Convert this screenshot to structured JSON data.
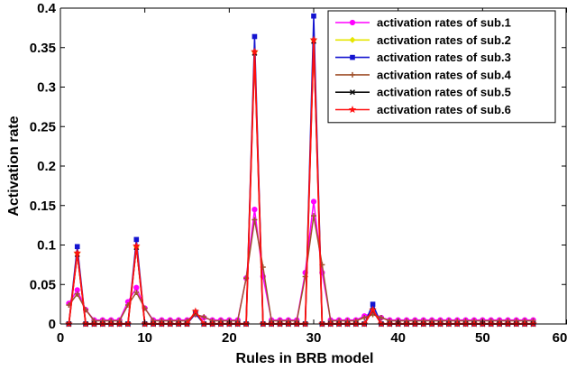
{
  "chart_data": {
    "type": "line",
    "xlabel": "Rules in BRB model",
    "ylabel": "Activation rate",
    "xlim": [
      0,
      60
    ],
    "ylim": [
      0,
      0.4
    ],
    "xticks": [
      0,
      10,
      20,
      30,
      40,
      50,
      60
    ],
    "yticks": [
      0,
      0.05,
      0.1,
      0.15,
      0.2,
      0.25,
      0.3,
      0.35,
      0.4
    ],
    "xtick_labels": [
      "0",
      "10",
      "20",
      "30",
      "40",
      "50",
      "60"
    ],
    "ytick_labels": [
      "0",
      "0.05",
      "0.1",
      "0.15",
      "0.2",
      "0.25",
      "0.3",
      "0.35",
      "0.4"
    ],
    "grid": false,
    "legend_position": "top-right",
    "x": [
      1,
      2,
      3,
      4,
      5,
      6,
      7,
      8,
      9,
      10,
      11,
      12,
      13,
      14,
      15,
      16,
      17,
      18,
      19,
      20,
      21,
      22,
      23,
      24,
      25,
      26,
      27,
      28,
      29,
      30,
      31,
      32,
      33,
      34,
      35,
      36,
      37,
      38,
      39,
      40,
      41,
      42,
      43,
      44,
      45,
      46,
      47,
      48,
      49,
      50,
      51,
      52,
      53,
      54,
      55,
      56
    ],
    "series": [
      {
        "name": "activation rates of sub.1",
        "color": "#ff00ff",
        "marker": "circle",
        "values": [
          0.026,
          0.043,
          0.018,
          0.005,
          0.005,
          0.005,
          0.005,
          0.028,
          0.046,
          0.02,
          0.005,
          0.005,
          0.005,
          0.005,
          0.005,
          0.012,
          0.008,
          0.005,
          0.005,
          0.005,
          0.005,
          0.058,
          0.145,
          0.06,
          0.005,
          0.005,
          0.005,
          0.005,
          0.065,
          0.155,
          0.065,
          0.005,
          0.005,
          0.005,
          0.005,
          0.01,
          0.014,
          0.008,
          0.005,
          0.005,
          0.005,
          0.005,
          0.005,
          0.005,
          0.005,
          0.005,
          0.005,
          0.005,
          0.005,
          0.005,
          0.005,
          0.005,
          0.005,
          0.005,
          0.005,
          0.005
        ]
      },
      {
        "name": "activation rates of sub.2",
        "color": "#e6e600",
        "marker": "diamond",
        "values": [
          0.0,
          0.09,
          0.0,
          0.0,
          0.0,
          0.0,
          0.0,
          0.0,
          0.098,
          0.0,
          0.0,
          0.0,
          0.0,
          0.0,
          0.0,
          0.015,
          0.0,
          0.0,
          0.0,
          0.0,
          0.0,
          0.0,
          0.345,
          0.0,
          0.0,
          0.0,
          0.0,
          0.0,
          0.0,
          0.36,
          0.0,
          0.0,
          0.0,
          0.0,
          0.0,
          0.0,
          0.018,
          0.0,
          0.0,
          0.0,
          0.0,
          0.0,
          0.0,
          0.0,
          0.0,
          0.0,
          0.0,
          0.0,
          0.0,
          0.0,
          0.0,
          0.0,
          0.0,
          0.0,
          0.0,
          0.0
        ]
      },
      {
        "name": "activation rates of sub.3",
        "color": "#1414d0",
        "marker": "square",
        "values": [
          0.0,
          0.098,
          0.0,
          0.0,
          0.0,
          0.0,
          0.0,
          0.0,
          0.107,
          0.0,
          0.0,
          0.0,
          0.0,
          0.0,
          0.0,
          0.013,
          0.0,
          0.0,
          0.0,
          0.0,
          0.0,
          0.0,
          0.364,
          0.0,
          0.0,
          0.0,
          0.0,
          0.0,
          0.0,
          0.39,
          0.0,
          0.0,
          0.0,
          0.0,
          0.0,
          0.0,
          0.025,
          0.0,
          0.0,
          0.0,
          0.0,
          0.0,
          0.0,
          0.0,
          0.0,
          0.0,
          0.0,
          0.0,
          0.0,
          0.0,
          0.0,
          0.0,
          0.0,
          0.0,
          0.0,
          0.0
        ]
      },
      {
        "name": "activation rates of sub.4",
        "color": "#a0522d",
        "marker": "plus",
        "values": [
          0.024,
          0.038,
          0.018,
          0.004,
          0.004,
          0.004,
          0.004,
          0.024,
          0.04,
          0.02,
          0.004,
          0.004,
          0.004,
          0.004,
          0.004,
          0.012,
          0.009,
          0.004,
          0.004,
          0.004,
          0.004,
          0.058,
          0.132,
          0.072,
          0.004,
          0.004,
          0.004,
          0.004,
          0.06,
          0.137,
          0.075,
          0.004,
          0.004,
          0.004,
          0.004,
          0.008,
          0.012,
          0.008,
          0.004,
          0.004,
          0.004,
          0.004,
          0.004,
          0.004,
          0.004,
          0.004,
          0.004,
          0.004,
          0.004,
          0.004,
          0.004,
          0.004,
          0.004,
          0.004,
          0.004,
          0.004
        ]
      },
      {
        "name": "activation rates of sub.5",
        "color": "#111111",
        "marker": "x",
        "values": [
          0.0,
          0.088,
          0.0,
          0.0,
          0.0,
          0.0,
          0.0,
          0.0,
          0.097,
          0.0,
          0.0,
          0.0,
          0.0,
          0.0,
          0.0,
          0.015,
          0.0,
          0.0,
          0.0,
          0.0,
          0.0,
          0.0,
          0.343,
          0.0,
          0.0,
          0.0,
          0.0,
          0.0,
          0.0,
          0.358,
          0.0,
          0.0,
          0.0,
          0.0,
          0.0,
          0.0,
          0.017,
          0.0,
          0.0,
          0.0,
          0.0,
          0.0,
          0.0,
          0.0,
          0.0,
          0.0,
          0.0,
          0.0,
          0.0,
          0.0,
          0.0,
          0.0,
          0.0,
          0.0,
          0.0,
          0.0
        ]
      },
      {
        "name": "activation rates of sub.6",
        "color": "#ff1010",
        "marker": "star",
        "values": [
          0.0,
          0.09,
          0.0,
          0.0,
          0.0,
          0.0,
          0.0,
          0.0,
          0.099,
          0.0,
          0.0,
          0.0,
          0.0,
          0.0,
          0.0,
          0.016,
          0.0,
          0.0,
          0.0,
          0.0,
          0.0,
          0.0,
          0.345,
          0.0,
          0.0,
          0.0,
          0.0,
          0.0,
          0.0,
          0.36,
          0.0,
          0.0,
          0.0,
          0.0,
          0.0,
          0.0,
          0.018,
          0.0,
          0.0,
          0.0,
          0.0,
          0.0,
          0.0,
          0.0,
          0.0,
          0.0,
          0.0,
          0.0,
          0.0,
          0.0,
          0.0,
          0.0,
          0.0,
          0.0,
          0.0,
          0.0
        ]
      }
    ]
  }
}
